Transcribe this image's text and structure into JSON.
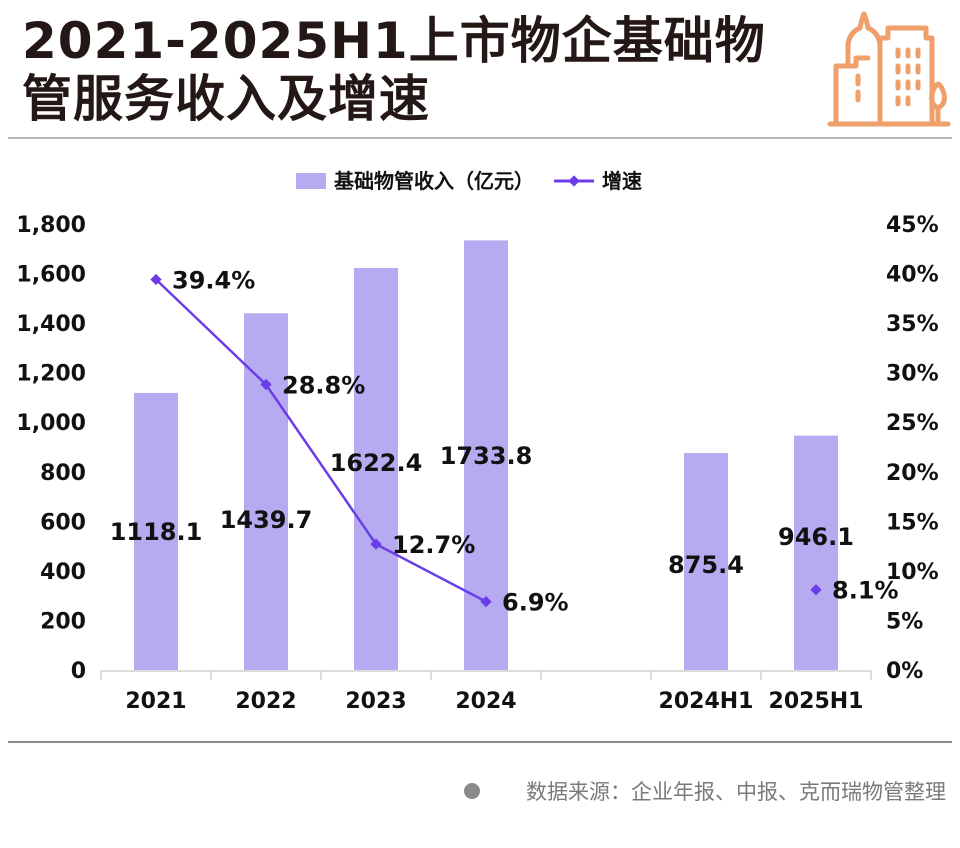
{
  "header": {
    "title_line1": "2021-2025H1上市物企基础物",
    "title_line2": "管服务收入及增速",
    "logo_icon": "city-buildings-icon",
    "logo_color": "#EFA06A"
  },
  "footer": {
    "source_text": "数据来源：企业年报、中报、克而瑞物管整理",
    "bullet_icon": "bullet-dot-icon"
  },
  "colors": {
    "bar": "#B6AAF0",
    "line": "#6B3DE8",
    "axis": "#d0d0d0",
    "text": "#111111"
  },
  "chart_data": {
    "type": "bar",
    "title": "2021-2025H1上市物企基础物管服务收入及增速",
    "categories": [
      "2021",
      "2022",
      "2023",
      "2024",
      "",
      "2024H1",
      "2025H1"
    ],
    "series": [
      {
        "name": "基础物管收入（亿元）",
        "type": "bar",
        "axis": "left",
        "values": [
          1118.1,
          1439.7,
          1622.4,
          1733.8,
          null,
          875.4,
          946.1
        ],
        "labels": [
          "1118.1",
          "1439.7",
          "1622.4",
          "1733.8",
          "",
          "875.4",
          "946.1"
        ]
      },
      {
        "name": "增速",
        "type": "line",
        "axis": "right",
        "values": [
          39.4,
          28.8,
          12.7,
          6.9,
          null,
          null,
          8.1
        ],
        "labels": [
          "39.4%",
          "28.8%",
          "12.7%",
          "6.9%",
          "",
          "",
          "8.1%"
        ]
      }
    ],
    "legend": {
      "position": "top-center",
      "items": [
        "基础物管收入（亿元）",
        "增速"
      ]
    },
    "left_axis": {
      "ylim": [
        0,
        1800
      ],
      "ticks": [
        0,
        200,
        400,
        600,
        800,
        1000,
        1200,
        1400,
        1600,
        1800
      ],
      "tick_labels": [
        "0",
        "200",
        "400",
        "600",
        "800",
        "1,000",
        "1,200",
        "1,400",
        "1,600",
        "1,800"
      ]
    },
    "right_axis": {
      "ylim": [
        0,
        45
      ],
      "ticks": [
        0,
        5,
        10,
        15,
        20,
        25,
        30,
        35,
        40,
        45
      ],
      "tick_labels": [
        "0%",
        "5%",
        "10%",
        "15%",
        "20%",
        "25%",
        "30%",
        "35%",
        "40%",
        "45%"
      ]
    },
    "xlabel": "",
    "ylabel": "",
    "grid": false
  }
}
